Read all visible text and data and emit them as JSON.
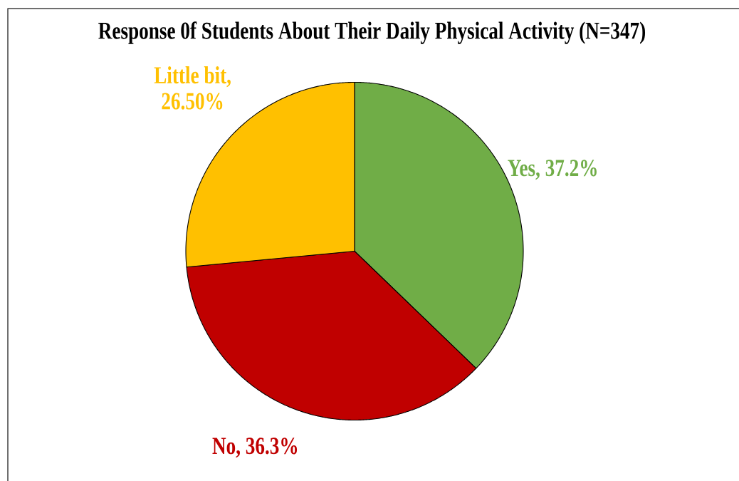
{
  "chart_data": {
    "type": "pie",
    "title": "Response 0f Students About Their Daily Physical Activity (N=347)",
    "categories": [
      "Yes",
      "No",
      "Little bit"
    ],
    "values": [
      37.2,
      36.3,
      26.5
    ],
    "colors": [
      "#70ad47",
      "#c00000",
      "#ffc000"
    ],
    "value_labels": [
      ", 37.2%",
      ", 36.3%",
      ", 26.50%"
    ]
  }
}
